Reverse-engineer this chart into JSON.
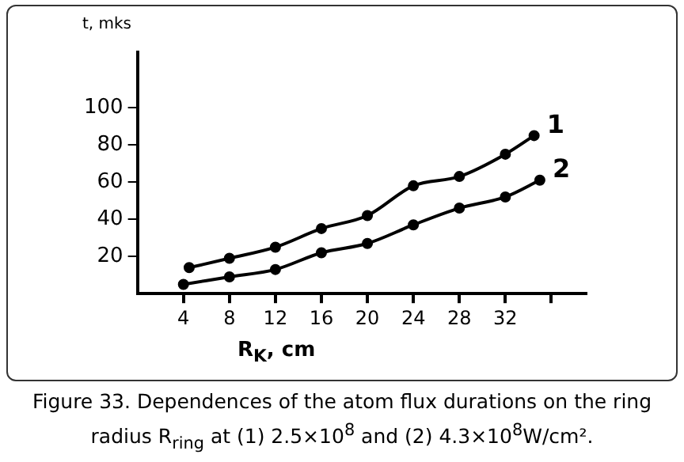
{
  "chart_data": {
    "type": "line",
    "ylabel": "t, mks",
    "xlabel": "R$_{K}$, cm",
    "annotations": [
      "Figure 33. Dependences of the atom flux durations on the ring radius R$_{ring}$ at (1) 2.5×10$^{8}$ and (2) 4.3×10$^{8}$W/cm²."
    ],
    "series": [
      {
        "name": "1",
        "color": "#000000",
        "x": [
          4.5,
          8,
          12,
          16,
          20,
          24,
          28,
          32,
          34.5
        ],
        "values": [
          14,
          19,
          25,
          35,
          42,
          58,
          63,
          75,
          85
        ]
      },
      {
        "name": "2",
        "color": "#000000",
        "x": [
          4,
          8,
          12,
          16,
          20,
          24,
          28,
          32,
          35
        ],
        "values": [
          5,
          9,
          13,
          22,
          27,
          37,
          46,
          52,
          61
        ]
      }
    ],
    "xlim": [
      0,
      39
    ],
    "xticks": [
      4,
      8,
      12,
      16,
      20,
      24,
      28,
      32,
      {
        "value": 36,
        "label": null
      }
    ],
    "ylim": [
      0,
      130
    ],
    "yticks": [
      20,
      40,
      60,
      80,
      100
    ],
    "grid": false,
    "legend": false,
    "marker": "circle",
    "line_style": "solid"
  }
}
